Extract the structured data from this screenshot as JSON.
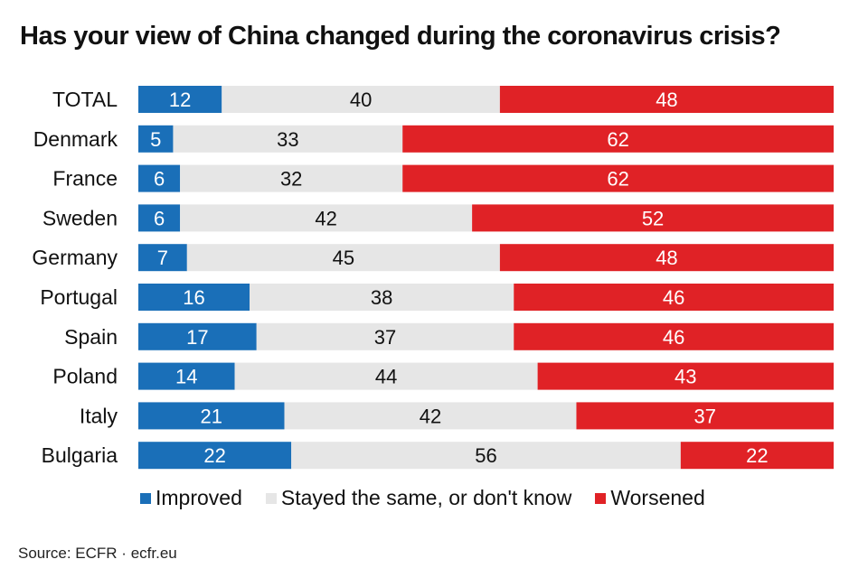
{
  "colors": {
    "improved": "#1a6fb8",
    "same": "#e6e6e6",
    "worsened": "#e02226"
  },
  "chart_data": {
    "type": "bar",
    "orientation": "horizontal",
    "stacked": true,
    "title": "Has your view of China changed during the coronavirus crisis?",
    "categories": [
      "TOTAL",
      "Denmark",
      "France",
      "Sweden",
      "Germany",
      "Portugal",
      "Spain",
      "Poland",
      "Italy",
      "Bulgaria"
    ],
    "series": [
      {
        "name": "Improved",
        "key": "improved",
        "values": [
          12,
          5,
          6,
          6,
          7,
          16,
          17,
          14,
          21,
          22
        ]
      },
      {
        "name": "Stayed the same, or don't know",
        "key": "same",
        "values": [
          40,
          33,
          32,
          42,
          45,
          38,
          37,
          44,
          42,
          56
        ]
      },
      {
        "name": "Worsened",
        "key": "worsened",
        "values": [
          48,
          62,
          62,
          52,
          48,
          46,
          46,
          43,
          37,
          22
        ]
      }
    ],
    "legend_position": "bottom",
    "grid": false
  },
  "source": "Source: ECFR · ecfr.eu"
}
